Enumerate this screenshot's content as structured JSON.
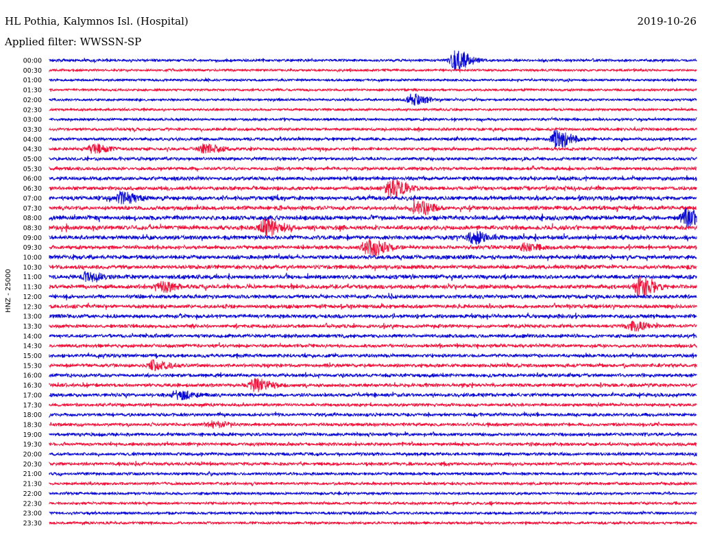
{
  "header": {
    "station": "HL Pothia, Kalymnos Isl. (Hospital)",
    "date": "2019-10-26",
    "filter": "Applied filter: WWSSN-SP"
  },
  "side_label": "HNZ - 25000",
  "colors": {
    "even_trace": "#0a0ad2",
    "odd_trace": "#f0143c",
    "background": "#ffffff"
  },
  "chart_data": {
    "type": "line",
    "title": "HL Pothia, Kalymnos Isl. (Hospital)",
    "ylabel": "HNZ - 25000",
    "xlabel": "",
    "row_labels": [
      "00:00",
      "00:30",
      "01:00",
      "01:30",
      "02:00",
      "02:30",
      "03:00",
      "03:30",
      "04:00",
      "04:30",
      "05:00",
      "05:30",
      "06:00",
      "06:30",
      "07:00",
      "07:30",
      "08:00",
      "08:30",
      "09:00",
      "09:30",
      "10:00",
      "10:30",
      "11:00",
      "11:30",
      "12:00",
      "12:30",
      "13:00",
      "13:30",
      "14:00",
      "14:30",
      "15:00",
      "15:30",
      "16:00",
      "16:30",
      "17:00",
      "17:30",
      "18:00",
      "18:30",
      "19:00",
      "19:30",
      "20:00",
      "20:30",
      "21:00",
      "21:30",
      "22:00",
      "22:30",
      "23:00",
      "23:30"
    ],
    "minutes_per_row": 30,
    "noise_level": [
      0.3,
      0.2,
      0.2,
      0.2,
      0.2,
      0.2,
      0.3,
      0.4,
      0.5,
      0.5,
      0.5,
      0.5,
      0.7,
      0.7,
      0.8,
      0.8,
      0.9,
      0.9,
      0.8,
      0.7,
      0.8,
      0.8,
      0.8,
      0.8,
      0.7,
      0.7,
      0.7,
      0.6,
      0.6,
      0.6,
      0.6,
      0.6,
      0.6,
      0.6,
      0.6,
      0.5,
      0.5,
      0.5,
      0.5,
      0.5,
      0.5,
      0.5,
      0.4,
      0.4,
      0.3,
      0.3,
      0.3,
      0.3
    ],
    "events": [
      {
        "row": 0,
        "minute": 18.8,
        "amplitude": 3.5
      },
      {
        "row": 4,
        "minute": 16.8,
        "amplitude": 2.0
      },
      {
        "row": 8,
        "minute": 23.5,
        "amplitude": 3.0
      },
      {
        "row": 9,
        "minute": 7.2,
        "amplitude": 1.5
      },
      {
        "row": 9,
        "minute": 2.0,
        "amplitude": 1.3
      },
      {
        "row": 13,
        "minute": 15.8,
        "amplitude": 3.0
      },
      {
        "row": 14,
        "minute": 3.3,
        "amplitude": 2.0
      },
      {
        "row": 15,
        "minute": 17.0,
        "amplitude": 2.5
      },
      {
        "row": 16,
        "minute": 29.5,
        "amplitude": 3.0
      },
      {
        "row": 17,
        "minute": 10.0,
        "amplitude": 3.0
      },
      {
        "row": 18,
        "minute": 19.6,
        "amplitude": 1.8
      },
      {
        "row": 19,
        "minute": 14.8,
        "amplitude": 3.0
      },
      {
        "row": 19,
        "minute": 22.0,
        "amplitude": 1.3
      },
      {
        "row": 22,
        "minute": 1.7,
        "amplitude": 1.5
      },
      {
        "row": 23,
        "minute": 5.2,
        "amplitude": 1.5
      },
      {
        "row": 23,
        "minute": 27.3,
        "amplitude": 3.2
      },
      {
        "row": 27,
        "minute": 27.0,
        "amplitude": 1.5
      },
      {
        "row": 31,
        "minute": 4.8,
        "amplitude": 1.5
      },
      {
        "row": 33,
        "minute": 9.5,
        "amplitude": 2.0
      },
      {
        "row": 34,
        "minute": 5.9,
        "amplitude": 1.5
      },
      {
        "row": 37,
        "minute": 7.5,
        "amplitude": 1.0
      }
    ]
  }
}
